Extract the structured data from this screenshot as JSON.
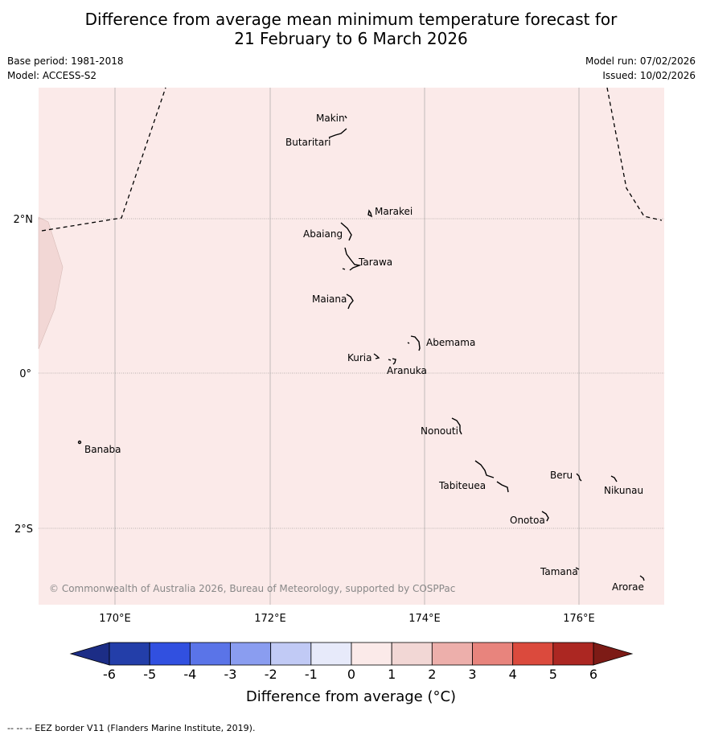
{
  "header": {
    "title_line1": "Difference from average mean minimum temperature forecast for",
    "title_line2": "21 February to 6 March 2026",
    "base_period": "Base period: 1981-2018",
    "model": "Model: ACCESS-S2",
    "model_run": "Model run: 07/02/2026",
    "issued": "Issued: 10/02/2026"
  },
  "map": {
    "background_color": "#fbeae9",
    "neighbor_region_color": "#f2d7d5",
    "longitude_labels": [
      "170°E",
      "172°E",
      "174°E",
      "176°E"
    ],
    "latitude_labels": [
      "2°N",
      "0°",
      "2°S"
    ],
    "copyright": "© Commonwealth of Australia 2026, Bureau of Meteorology, supported by COSPPac",
    "place_names": [
      "Makin",
      "Butaritari",
      "Marakei",
      "Abaiang",
      "Tarawa",
      "Maiana",
      "Abemama",
      "Kuria",
      "Aranuka",
      "Nonouti",
      "Banaba",
      "Tabiteuea",
      "Beru",
      "Nikunau",
      "Onotoa",
      "Tamana",
      "Arorae"
    ]
  },
  "colorbar": {
    "title": "Difference from average (°C)",
    "tick_labels": [
      "-6",
      "-5",
      "-4",
      "-3",
      "-2",
      "-1",
      "0",
      "1",
      "2",
      "3",
      "4",
      "5",
      "6"
    ],
    "colors": [
      "#233ea9",
      "#3150e0",
      "#5a74e8",
      "#8a9df0",
      "#c1caf5",
      "#e7eafa",
      "#fbeae9",
      "#f2d7d5",
      "#edafab",
      "#e8847d",
      "#db4a3d",
      "#ac2722"
    ],
    "under_color": "#1c2d86",
    "over_color": "#7d1b16"
  },
  "footnote": "--  --  -- EEZ border V11 (Flanders Marine Institute, 2019)."
}
